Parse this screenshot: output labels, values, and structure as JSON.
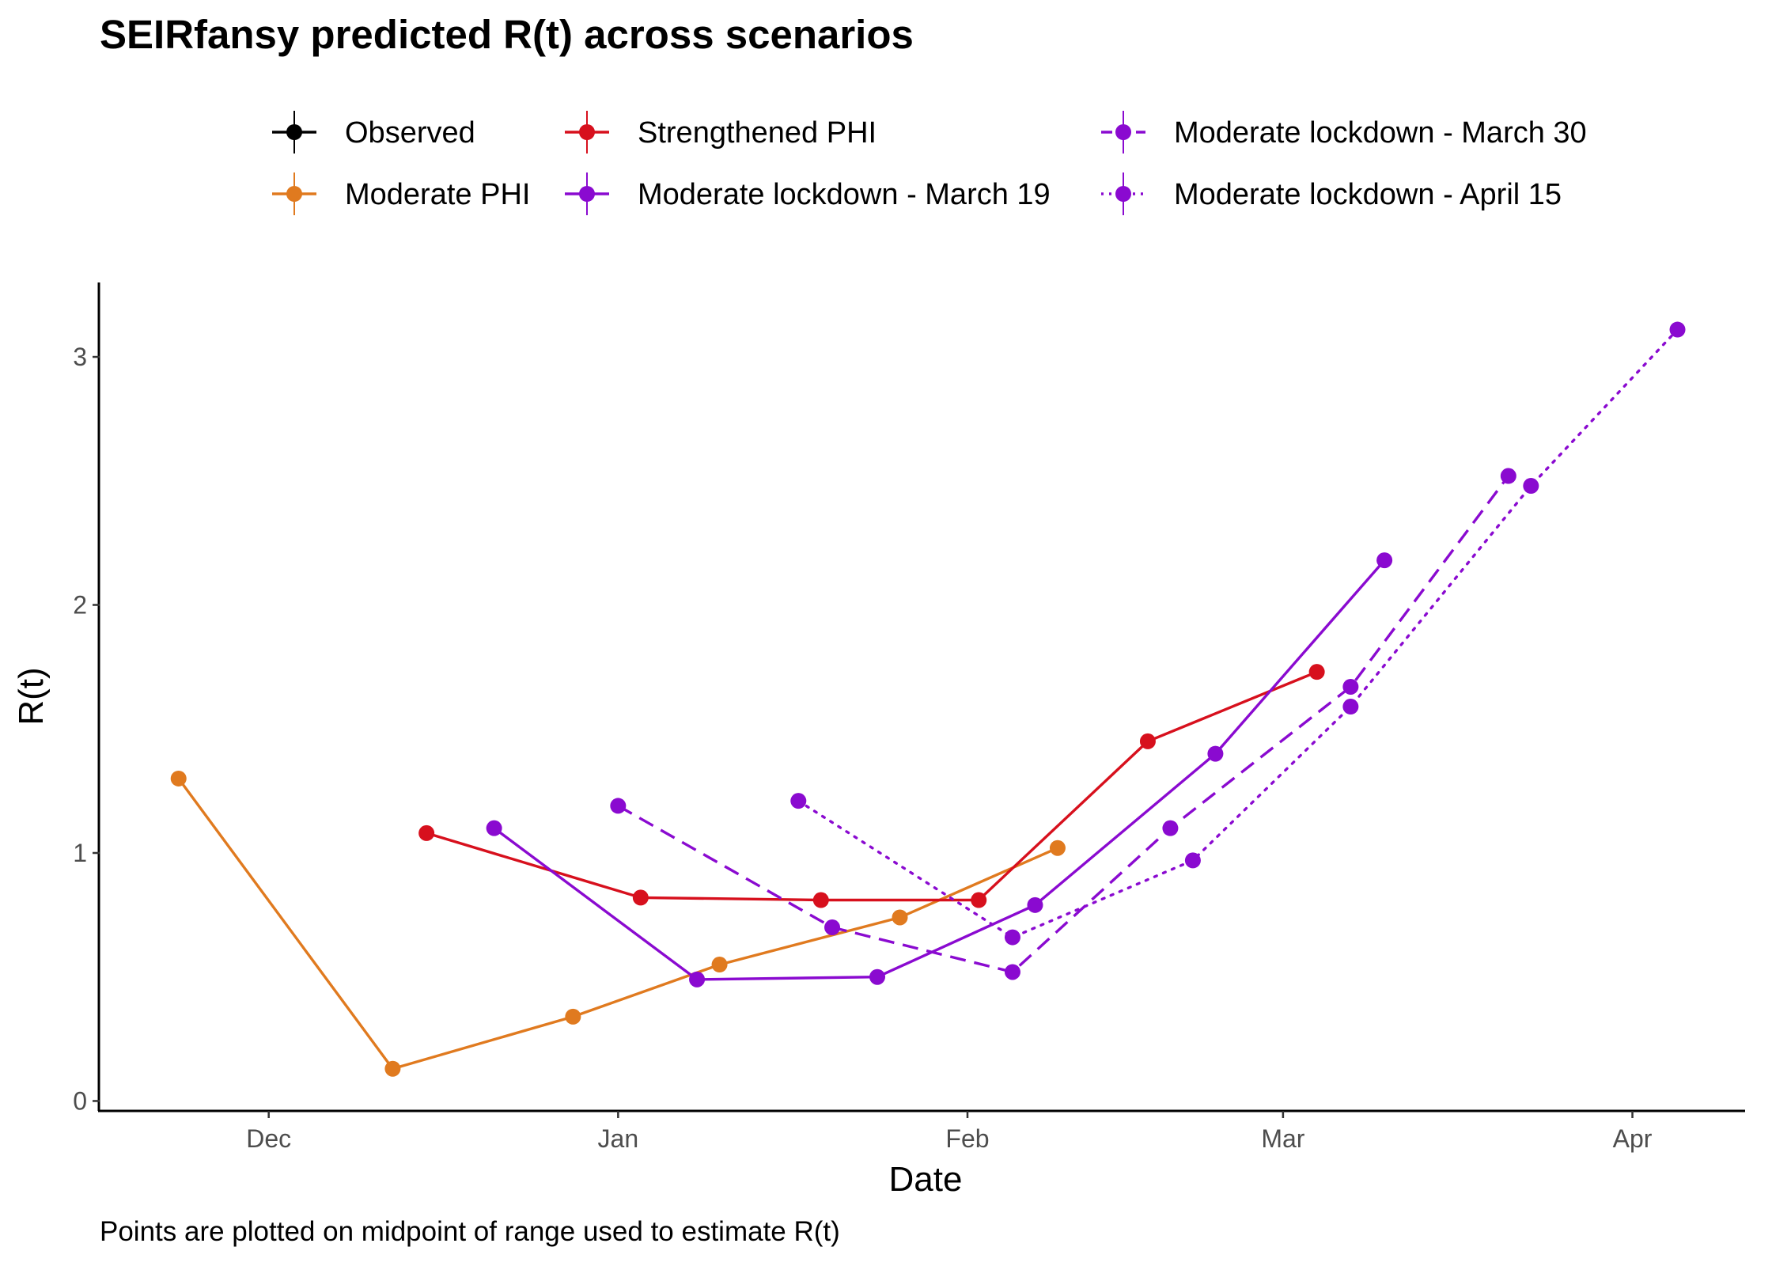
{
  "chart_data": {
    "type": "line",
    "title": "SEIRfansy predicted R(t) across scenarios",
    "caption": "Points are plotted on midpoint of range used to estimate R(t)",
    "xlabel": "Date",
    "ylabel": "R(t)",
    "x_ticks": [
      {
        "date": "2020-12-01",
        "label": "Dec"
      },
      {
        "date": "2021-01-01",
        "label": "Jan"
      },
      {
        "date": "2021-02-01",
        "label": "Feb"
      },
      {
        "date": "2021-03-01",
        "label": "Mar"
      },
      {
        "date": "2021-04-01",
        "label": "Apr"
      }
    ],
    "y_ticks": [
      0,
      1,
      2,
      3
    ],
    "xlim": [
      "2020-11-16",
      "2021-04-11"
    ],
    "ylim": [
      -0.04,
      3.3
    ],
    "grid": false,
    "legend_position": "top",
    "colors": {
      "observed": "#000000",
      "moderate_phi": "#e07a1f",
      "strengthened_phi": "#d7101d",
      "lockdown": "#8a0ad0"
    },
    "legend": [
      {
        "label": "Observed",
        "color": "#000000",
        "dash": "solid"
      },
      {
        "label": "Moderate PHI",
        "color": "#e07a1f",
        "dash": "solid"
      },
      {
        "label": "Strengthened PHI",
        "color": "#d7101d",
        "dash": "solid"
      },
      {
        "label": "Moderate lockdown - March 19",
        "color": "#8a0ad0",
        "dash": "solid"
      },
      {
        "label": "Moderate lockdown - March 30",
        "color": "#8a0ad0",
        "dash": "dashed"
      },
      {
        "label": "Moderate lockdown - April 15",
        "color": "#8a0ad0",
        "dash": "dotted"
      }
    ],
    "series": [
      {
        "name": "Moderate PHI",
        "color": "#e07a1f",
        "dash": "solid",
        "points": [
          [
            "2020-11-23",
            1.3
          ],
          [
            "2020-12-12",
            0.13
          ],
          [
            "2020-12-28",
            0.34
          ],
          [
            "2021-01-10",
            0.55
          ],
          [
            "2021-01-26",
            0.74
          ],
          [
            "2021-02-09",
            1.02
          ]
        ]
      },
      {
        "name": "Strengthened PHI",
        "color": "#d7101d",
        "dash": "solid",
        "points": [
          [
            "2020-12-15",
            1.08
          ],
          [
            "2021-01-03",
            0.82
          ],
          [
            "2021-01-19",
            0.81
          ],
          [
            "2021-02-02",
            0.81
          ],
          [
            "2021-02-17",
            1.45
          ],
          [
            "2021-03-04",
            1.73
          ]
        ]
      },
      {
        "name": "Moderate lockdown - March 19",
        "color": "#8a0ad0",
        "dash": "solid",
        "points": [
          [
            "2020-12-21",
            1.1
          ],
          [
            "2021-01-08",
            0.49
          ],
          [
            "2021-01-24",
            0.5
          ],
          [
            "2021-02-07",
            0.79
          ],
          [
            "2021-02-23",
            1.4
          ],
          [
            "2021-03-10",
            2.18
          ]
        ]
      },
      {
        "name": "Moderate lockdown - March 30",
        "color": "#8a0ad0",
        "dash": "dashed",
        "points": [
          [
            "2021-01-01",
            1.19
          ],
          [
            "2021-01-20",
            0.7
          ],
          [
            "2021-02-05",
            0.52
          ],
          [
            "2021-02-19",
            1.1
          ],
          [
            "2021-03-07",
            1.67
          ],
          [
            "2021-03-21",
            2.52
          ]
        ]
      },
      {
        "name": "Moderate lockdown - April 15",
        "color": "#8a0ad0",
        "dash": "dotted",
        "points": [
          [
            "2021-01-17",
            1.21
          ],
          [
            "2021-02-05",
            0.66
          ],
          [
            "2021-02-21",
            0.97
          ],
          [
            "2021-03-07",
            1.59
          ],
          [
            "2021-03-23",
            2.48
          ],
          [
            "2021-04-05",
            3.11
          ]
        ]
      }
    ]
  }
}
